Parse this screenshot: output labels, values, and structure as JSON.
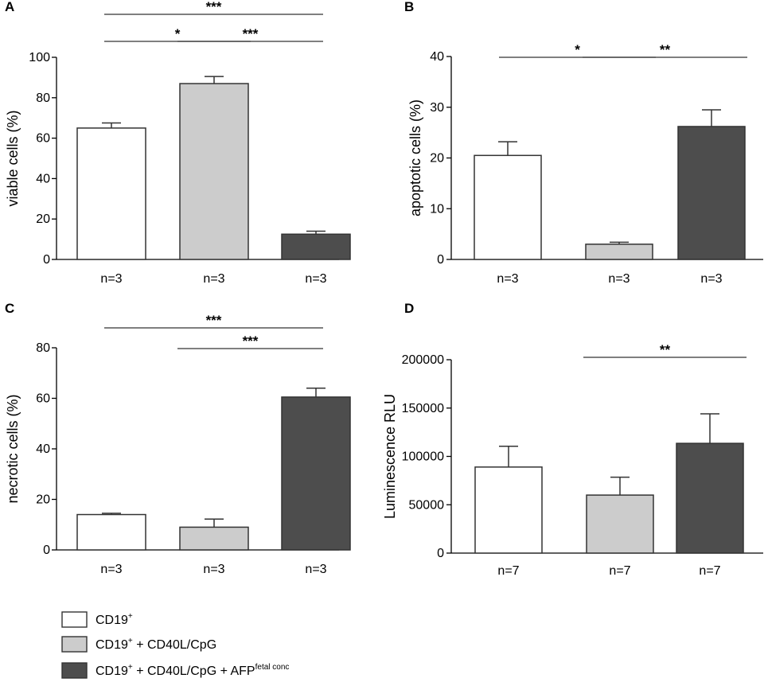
{
  "colors": {
    "group1": "#ffffff",
    "group2": "#cccccc",
    "group3": "#4d4d4d",
    "stroke": "#333333"
  },
  "chart_data": [
    {
      "panel": "A",
      "type": "bar",
      "ylabel": "viable cells (%)",
      "ylim": [
        0,
        100
      ],
      "yticks": [
        "0",
        "20",
        "40",
        "60",
        "80",
        "100"
      ],
      "ytick_values": [
        0,
        20,
        40,
        60,
        80,
        100
      ],
      "categories": [
        "n=3",
        "n=3",
        "n=3"
      ],
      "values": [
        65,
        87,
        12.5
      ],
      "errors": [
        2.5,
        3.5,
        1.5
      ],
      "significance": [
        {
          "from": 0,
          "to": 2,
          "label": "***"
        },
        {
          "from": 0,
          "to": 1,
          "label": "*"
        },
        {
          "from": 1,
          "to": 2,
          "label": "***"
        }
      ]
    },
    {
      "panel": "B",
      "type": "bar",
      "ylabel": "apoptotic cells (%)",
      "ylim": [
        0,
        40
      ],
      "yticks": [
        "0",
        "10",
        "20",
        "30",
        "40"
      ],
      "ytick_values": [
        0,
        10,
        20,
        30,
        40
      ],
      "categories": [
        "n=3",
        "n=3",
        "n=3"
      ],
      "values": [
        20.5,
        3,
        26.2
      ],
      "errors": [
        2.7,
        0.4,
        3.3
      ],
      "significance": [
        {
          "from": 0,
          "to": 1,
          "label": "*"
        },
        {
          "from": 1,
          "to": 2,
          "label": "**"
        }
      ]
    },
    {
      "panel": "C",
      "type": "bar",
      "ylabel": "necrotic cells (%)",
      "ylim": [
        0,
        80
      ],
      "yticks": [
        "0",
        "20",
        "40",
        "60",
        "80"
      ],
      "ytick_values": [
        0,
        20,
        40,
        60,
        80
      ],
      "categories": [
        "n=3",
        "n=3",
        "n=3"
      ],
      "values": [
        14,
        9,
        60.5
      ],
      "errors": [
        0.5,
        3.2,
        3.5
      ],
      "significance": [
        {
          "from": 0,
          "to": 2,
          "label": "***"
        },
        {
          "from": 1,
          "to": 2,
          "label": "***"
        }
      ]
    },
    {
      "panel": "D",
      "type": "bar",
      "ylabel": "Luminescence RLU",
      "ylim": [
        0,
        200000
      ],
      "yticks": [
        "0",
        "50000",
        "100000",
        "150000",
        "200000"
      ],
      "ytick_values": [
        0,
        50000,
        100000,
        150000,
        200000
      ],
      "categories": [
        "n=7",
        "n=7",
        "n=7"
      ],
      "values": [
        89000,
        60000,
        113500
      ],
      "errors": [
        21500,
        18500,
        30500
      ],
      "significance": [
        {
          "from": 1,
          "to": 2,
          "label": "**"
        }
      ]
    }
  ],
  "legend": [
    {
      "base": "CD19",
      "sup": "+",
      "suffix": "",
      "tail": "",
      "tail_sup": ""
    },
    {
      "base": "CD19",
      "sup": "+",
      "suffix": " + CD40L/CpG",
      "tail": "",
      "tail_sup": ""
    },
    {
      "base": "CD19",
      "sup": "+",
      "suffix": " + CD40L/CpG + AFP",
      "tail": "",
      "tail_sup": "fetal conc"
    }
  ]
}
